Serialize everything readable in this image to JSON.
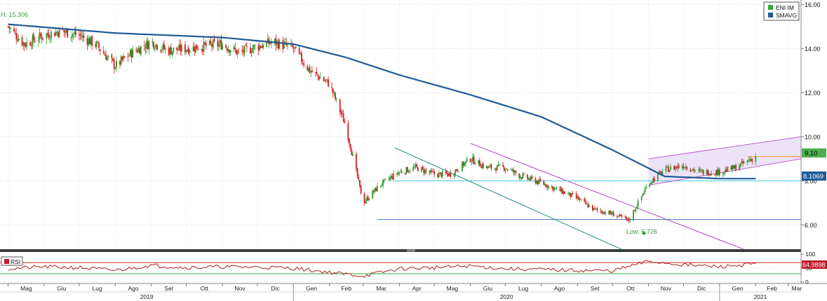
{
  "legend": {
    "items": [
      {
        "label": "ENI IM",
        "color": "#3aa63a"
      },
      {
        "label": "SMAVG",
        "color": "#1f5a96"
      }
    ]
  },
  "rsi_panel": {
    "legend_label": "RSI",
    "legend_color": "#c0192b",
    "last_value_label": "64.9898"
  },
  "price_badges": {
    "last_price": "9.10",
    "sma_value": "8.1069"
  },
  "annotations": {
    "high_label": "H: 15.306",
    "low_label": "Low: 5.726"
  },
  "x_axis": {
    "month_labels": [
      "Mag",
      "Giu",
      "Lug",
      "Ago",
      "Set",
      "Ott",
      "Nov",
      "Dic",
      "Gen",
      "Feb",
      "Mar",
      "Apr",
      "Mag",
      "Giu",
      "Lug",
      "Ago",
      "Set",
      "Ott",
      "Nov",
      "Dic",
      "Gen",
      "Feb",
      "Mar"
    ],
    "year_labels": [
      "2019",
      "2020",
      "2021"
    ]
  },
  "chart_data": [
    {
      "type": "candlestick",
      "title": "",
      "series": [
        {
          "name": "ENI IM",
          "x": [
            "2019-05-01",
            "2019-05-15",
            "2019-06-01",
            "2019-06-15",
            "2019-07-01",
            "2019-07-15",
            "2019-08-01",
            "2019-08-15",
            "2019-09-01",
            "2019-09-15",
            "2019-10-01",
            "2019-10-15",
            "2019-11-01",
            "2019-11-15",
            "2019-12-01",
            "2019-12-15",
            "2020-01-01",
            "2020-01-15",
            "2020-02-01",
            "2020-02-15",
            "2020-03-01",
            "2020-03-15",
            "2020-04-01",
            "2020-04-15",
            "2020-05-01",
            "2020-05-15",
            "2020-06-01",
            "2020-06-15",
            "2020-07-01",
            "2020-07-15",
            "2020-08-01",
            "2020-08-15",
            "2020-09-01",
            "2020-09-15",
            "2020-10-01",
            "2020-10-15",
            "2020-11-01",
            "2020-11-15",
            "2020-12-01",
            "2020-12-15",
            "2021-01-01",
            "2021-01-15",
            "2021-02-01"
          ],
          "close": [
            15.0,
            14.2,
            14.6,
            14.8,
            14.6,
            14.2,
            13.2,
            13.8,
            14.3,
            13.9,
            14.0,
            14.1,
            14.2,
            13.8,
            14.1,
            14.3,
            14.0,
            13.0,
            12.4,
            10.5,
            7.0,
            7.8,
            8.4,
            8.6,
            8.3,
            8.3,
            9.0,
            8.6,
            8.6,
            8.2,
            7.9,
            7.6,
            7.2,
            6.7,
            6.5,
            6.2,
            7.9,
            8.5,
            8.7,
            8.4,
            8.4,
            8.6,
            9.1
          ]
        },
        {
          "name": "SMAVG",
          "x": [
            "2019-05-01",
            "2019-08-01",
            "2019-11-01",
            "2020-01-01",
            "2020-02-15",
            "2020-04-01",
            "2020-06-01",
            "2020-08-01",
            "2020-10-01",
            "2020-11-15",
            "2021-01-01",
            "2021-02-01"
          ],
          "y": [
            15.1,
            14.7,
            14.5,
            14.2,
            13.6,
            12.8,
            11.9,
            10.9,
            9.4,
            8.2,
            8.1,
            8.1
          ]
        }
      ],
      "y_ticks": [
        6.0,
        8.0,
        10.0,
        12.0,
        14.0,
        16.0
      ],
      "y_tick_labels": [
        "6.00",
        "8.00",
        "10.00",
        "12.00",
        "14.00",
        "16.00"
      ],
      "ylim": [
        4.9,
        16.2
      ],
      "y_axis_side": "right",
      "grid": true,
      "legend_position": "top-right",
      "high": 15.306,
      "low": 5.726,
      "last_price": 9.1,
      "sma_last": 8.1069
    },
    {
      "type": "line",
      "title": "",
      "series": [
        {
          "name": "RSI",
          "x": [
            "2019-05-01",
            "2019-06-01",
            "2019-07-01",
            "2019-08-01",
            "2019-09-01",
            "2019-10-01",
            "2019-11-01",
            "2019-12-01",
            "2020-01-01",
            "2020-02-01",
            "2020-03-01",
            "2020-04-01",
            "2020-05-01",
            "2020-06-01",
            "2020-07-01",
            "2020-08-01",
            "2020-09-01",
            "2020-10-01",
            "2020-11-01",
            "2020-12-01",
            "2021-01-01",
            "2021-02-01"
          ],
          "y": [
            48,
            55,
            52,
            42,
            60,
            52,
            55,
            54,
            50,
            35,
            22,
            48,
            52,
            58,
            48,
            45,
            42,
            40,
            75,
            62,
            55,
            65
          ]
        }
      ],
      "y_ticks": [
        0,
        50,
        100
      ],
      "y_tick_labels": [
        "0",
        "50",
        "100"
      ],
      "ylim": [
        -5,
        108
      ],
      "reference_lines": [
        70,
        30
      ],
      "last_value": 64.9898
    }
  ]
}
